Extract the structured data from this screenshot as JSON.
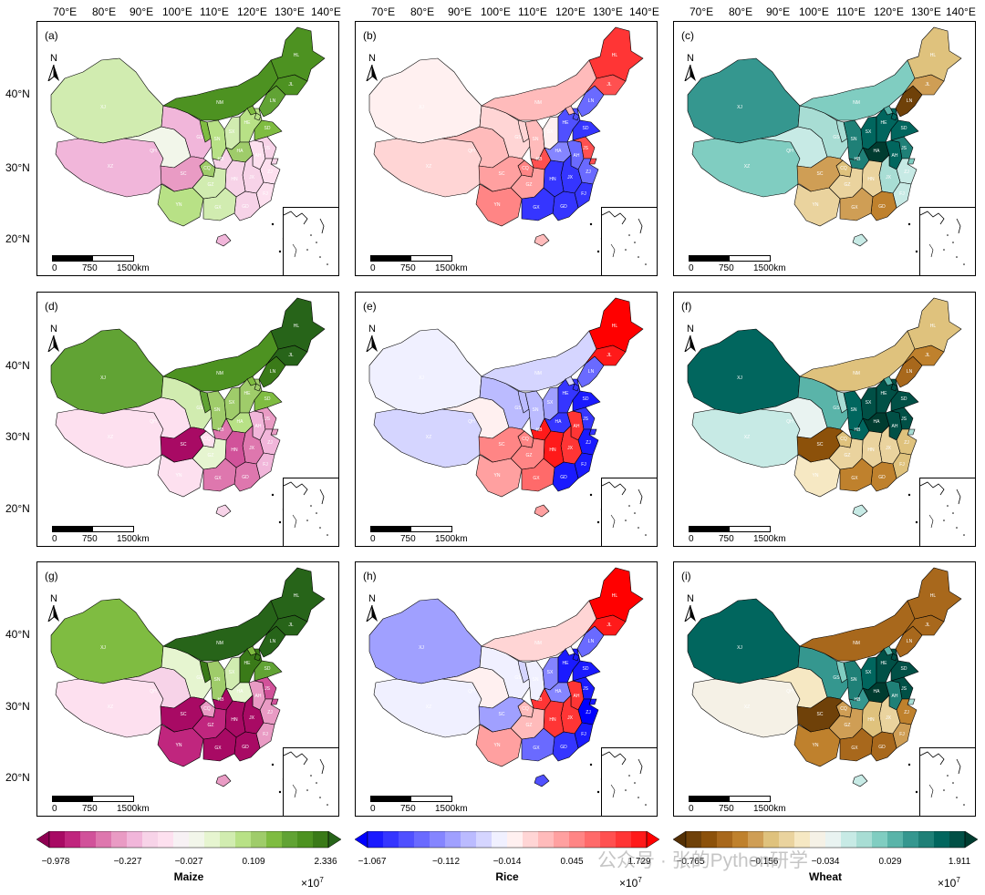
{
  "lon_ticks": [
    "70°E",
    "80°E",
    "90°E",
    "100°E",
    "110°E",
    "120°E",
    "130°E",
    "140°E"
  ],
  "lat_ticks": [
    "40°N",
    "30°N",
    "20°N"
  ],
  "north": "N",
  "scale": {
    "l0": "0",
    "l1": "750",
    "l2": "1500km"
  },
  "provinces": [
    "XJ",
    "XZ",
    "QH",
    "GS",
    "NM",
    "NX",
    "SN",
    "SX",
    "HE",
    "BJ",
    "TJ",
    "SD",
    "LN",
    "JL",
    "HL",
    "HA",
    "HB",
    "AH",
    "JS",
    "SH",
    "ZJ",
    "JX",
    "FJ",
    "HN",
    "GD",
    "GX",
    "GZ",
    "YN",
    "SC",
    "CQ",
    "HI"
  ],
  "palettes": {
    "Maize": [
      "#8e0152",
      "#a80a64",
      "#c0267e",
      "#d1529a",
      "#de77ae",
      "#e99bc4",
      "#f1b6da",
      "#f7d3e8",
      "#fde0ef",
      "#f7f1f4",
      "#f2f6ea",
      "#e6f5d0",
      "#d1ecb0",
      "#b8e186",
      "#9fcc6a",
      "#7fbc41",
      "#61a334",
      "#4d9221",
      "#3a7a18",
      "#276419"
    ],
    "Rice": [
      "#0000ff",
      "#1a1aff",
      "#3535ff",
      "#5050ff",
      "#6a6aff",
      "#8585ff",
      "#a0a0ff",
      "#bbbbff",
      "#d5d5ff",
      "#f0f0ff",
      "#fff0f0",
      "#ffd5d5",
      "#ffbbbb",
      "#ffa0a0",
      "#ff8585",
      "#ff6a6a",
      "#ff5050",
      "#ff3535",
      "#ff1a1a",
      "#ff0000"
    ],
    "Wheat": [
      "#543005",
      "#6f4109",
      "#8c510a",
      "#a8681c",
      "#bf812d",
      "#cf9e55",
      "#dfc27d",
      "#ead39e",
      "#f6e8c3",
      "#f5f1e6",
      "#e9f3f1",
      "#c7eae5",
      "#a8ddd4",
      "#80cdc1",
      "#5ab4a9",
      "#35978f",
      "#1f8077",
      "#01665e",
      "#015046",
      "#003c30"
    ]
  },
  "panels": [
    {
      "label": "(a)",
      "palette": "Maize",
      "levels": [
        12,
        6,
        10,
        6,
        17,
        15,
        13,
        12,
        13,
        15,
        13,
        15,
        16,
        17,
        17,
        14,
        7,
        8,
        7,
        7,
        8,
        7,
        8,
        7,
        7,
        12,
        12,
        13,
        5,
        14,
        6
      ]
    },
    {
      "label": "(b)",
      "palette": "Rice",
      "levels": [
        10,
        11,
        12,
        11,
        12,
        11,
        12,
        10,
        3,
        12,
        3,
        2,
        4,
        16,
        17,
        5,
        16,
        4,
        16,
        16,
        4,
        2,
        2,
        2,
        2,
        2,
        13,
        14,
        13,
        14,
        12
      ]
    },
    {
      "label": "(c)",
      "palette": "Wheat",
      "levels": [
        15,
        13,
        11,
        12,
        13,
        12,
        16,
        17,
        17,
        14,
        17,
        17,
        1,
        5,
        6,
        19,
        16,
        17,
        16,
        13,
        11,
        12,
        11,
        7,
        4,
        5,
        7,
        7,
        5,
        6,
        11
      ]
    },
    {
      "label": "(d)",
      "palette": "Maize",
      "levels": [
        16,
        8,
        8,
        12,
        17,
        16,
        14,
        14,
        14,
        15,
        14,
        15,
        18,
        19,
        19,
        13,
        4,
        6,
        5,
        5,
        6,
        4,
        6,
        3,
        4,
        4,
        11,
        8,
        1,
        8,
        7
      ]
    },
    {
      "label": "(e)",
      "palette": "Rice",
      "levels": [
        9,
        8,
        10,
        7,
        8,
        7,
        7,
        6,
        2,
        8,
        2,
        1,
        4,
        18,
        19,
        2,
        18,
        17,
        2,
        2,
        1,
        17,
        1,
        18,
        1,
        15,
        14,
        13,
        14,
        14,
        13
      ]
    },
    {
      "label": "(f)",
      "palette": "Wheat",
      "levels": [
        17,
        11,
        10,
        14,
        6,
        12,
        17,
        18,
        18,
        14,
        18,
        18,
        3,
        4,
        6,
        19,
        17,
        18,
        18,
        12,
        6,
        7,
        6,
        7,
        4,
        4,
        7,
        8,
        2,
        6,
        11
      ]
    },
    {
      "label": "(g)",
      "palette": "Maize",
      "levels": [
        15,
        8,
        7,
        11,
        19,
        18,
        14,
        12,
        18,
        15,
        18,
        16,
        19,
        19,
        19,
        11,
        1,
        5,
        3,
        3,
        5,
        1,
        5,
        1,
        1,
        1,
        2,
        2,
        1,
        5,
        5
      ]
    },
    {
      "label": "(h)",
      "palette": "Rice",
      "levels": [
        6,
        9,
        10,
        9,
        11,
        8,
        9,
        5,
        1,
        9,
        1,
        1,
        4,
        18,
        19,
        5,
        17,
        17,
        1,
        1,
        0,
        17,
        1,
        17,
        2,
        4,
        12,
        13,
        6,
        12,
        3
      ]
    },
    {
      "label": "(i)",
      "palette": "Wheat",
      "levels": [
        17,
        9,
        8,
        15,
        3,
        13,
        16,
        17,
        18,
        14,
        18,
        18,
        3,
        3,
        3,
        19,
        15,
        16,
        18,
        12,
        4,
        7,
        5,
        6,
        3,
        3,
        5,
        4,
        1,
        5,
        11
      ]
    }
  ],
  "colorbars": [
    {
      "title": "Maize",
      "palette": "Maize",
      "ticks": [
        "−0.978",
        "−0.227",
        "−0.027",
        "0.109",
        "2.336"
      ],
      "exponent": "×10",
      "exp_power": "7"
    },
    {
      "title": "Rice",
      "palette": "Rice",
      "ticks": [
        "−1.067",
        "−0.112",
        "−0.014",
        "0.045",
        "1.729"
      ],
      "exponent": "×10",
      "exp_power": "7"
    },
    {
      "title": "Wheat",
      "palette": "Wheat",
      "ticks": [
        "−0.765",
        "−0.156",
        "−0.034",
        "0.029",
        "1.911"
      ],
      "exponent": "×10",
      "exp_power": "7"
    }
  ],
  "watermark": "公众号 · 张的Python研学"
}
